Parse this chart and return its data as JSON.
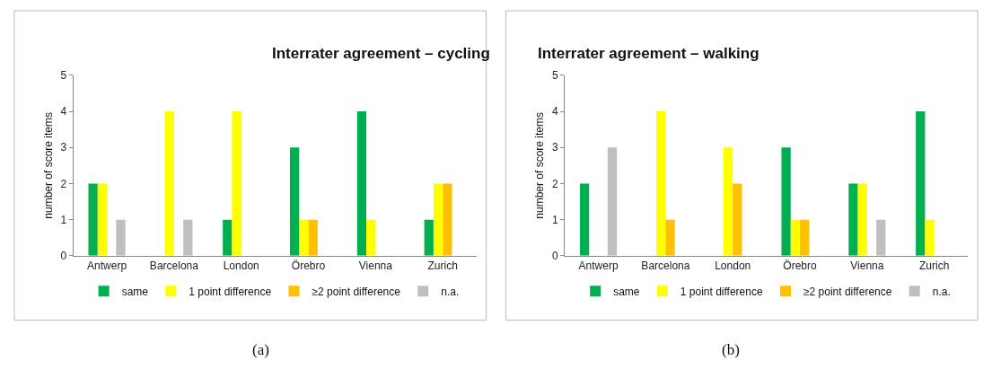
{
  "chart_data": [
    {
      "type": "bar",
      "title": "Interrater agreement – cycling",
      "ylabel": "number of score items",
      "categories": [
        "Antwerp",
        "Barcelona",
        "London",
        "Örebro",
        "Vienna",
        "Zurich"
      ],
      "ylim": [
        0,
        5
      ],
      "yticks": [
        0,
        1,
        2,
        3,
        4,
        5
      ],
      "legend": "bottom",
      "annotations": [
        "(a)"
      ],
      "series": [
        {
          "name": "same",
          "color": "#00b050",
          "values": [
            2,
            0,
            1,
            3,
            4,
            1
          ]
        },
        {
          "name": "1 point difference",
          "color": "#ffff00",
          "values": [
            2,
            4,
            4,
            1,
            1,
            2
          ]
        },
        {
          "name": "≥2 point difference",
          "color": "#ffc000",
          "values": [
            0,
            0,
            0,
            1,
            0,
            2
          ]
        },
        {
          "name": "n.a.",
          "color": "#bfbfbf",
          "values": [
            1,
            1,
            0,
            0,
            0,
            0
          ]
        }
      ]
    },
    {
      "type": "bar",
      "title": "Interrater agreement – walking",
      "ylabel": "number of score items",
      "categories": [
        "Antwerp",
        "Barcelona",
        "London",
        "Örebro",
        "Vienna",
        "Zurich"
      ],
      "ylim": [
        0,
        5
      ],
      "yticks": [
        0,
        1,
        2,
        3,
        4,
        5
      ],
      "legend": "bottom",
      "annotations": [
        "(b)"
      ],
      "series": [
        {
          "name": "same",
          "color": "#00b050",
          "values": [
            2,
            0,
            0,
            3,
            2,
            4
          ]
        },
        {
          "name": "1 point difference",
          "color": "#ffff00",
          "values": [
            0,
            4,
            3,
            1,
            2,
            1
          ]
        },
        {
          "name": "≥2 point difference",
          "color": "#ffc000",
          "values": [
            0,
            1,
            2,
            1,
            0,
            0
          ]
        },
        {
          "name": "n.a.",
          "color": "#bfbfbf",
          "values": [
            3,
            0,
            0,
            0,
            1,
            0
          ]
        }
      ]
    }
  ]
}
